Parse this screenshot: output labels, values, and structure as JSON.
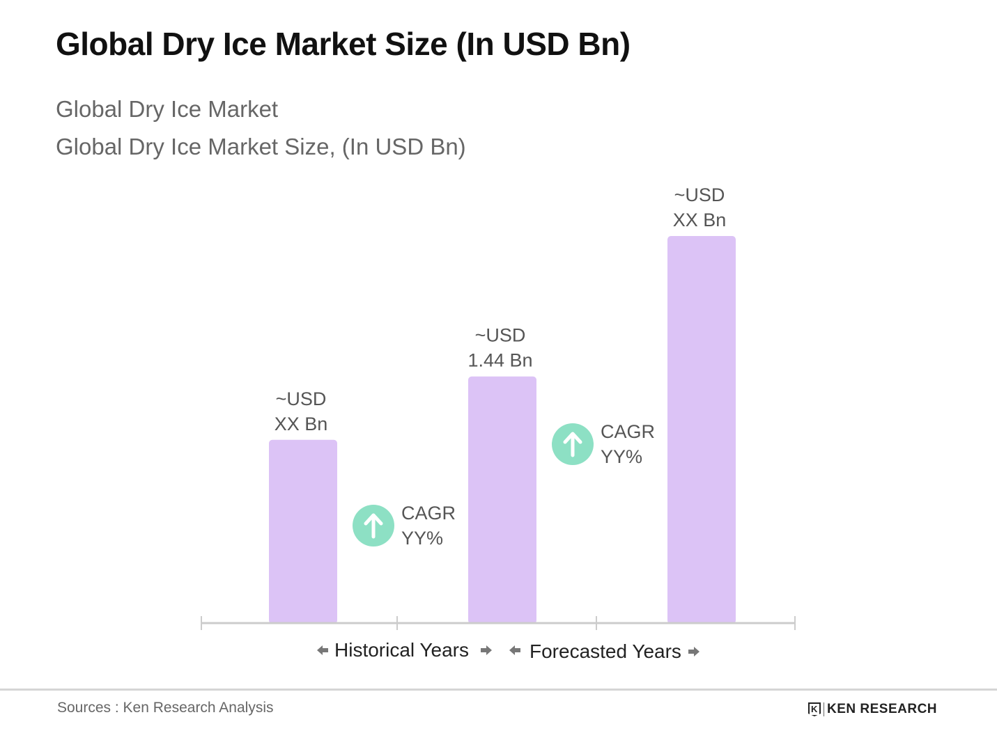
{
  "chart_data": {
    "type": "bar",
    "title": "Global Dry Ice Market Size (In USD Bn)",
    "subtitle": [
      "Global Dry Ice Market",
      "Global Dry Ice Market Size, (In USD Bn)"
    ],
    "categories": [
      "",
      "",
      ""
    ],
    "values": [
      1.07,
      1.44,
      2.26
    ],
    "data_labels": [
      [
        "~USD",
        "XX Bn"
      ],
      [
        "~USD",
        "1.44 Bn"
      ],
      [
        "~USD",
        "XX Bn"
      ]
    ],
    "cagr_labels": [
      [
        "CAGR",
        "YY%"
      ],
      [
        "CAGR",
        "YY%"
      ]
    ],
    "x_sections": [
      "Historical Years",
      "Forecasted Years"
    ],
    "ylim": [
      0,
      2.3
    ],
    "grid": false,
    "colors": {
      "bar": "#dcc3f6",
      "cagr_circle": "#8de0c4",
      "axis": "#cccccc"
    }
  },
  "footer": {
    "source": "Sources : Ken Research Analysis",
    "logo": "KEN RESEARCH"
  }
}
